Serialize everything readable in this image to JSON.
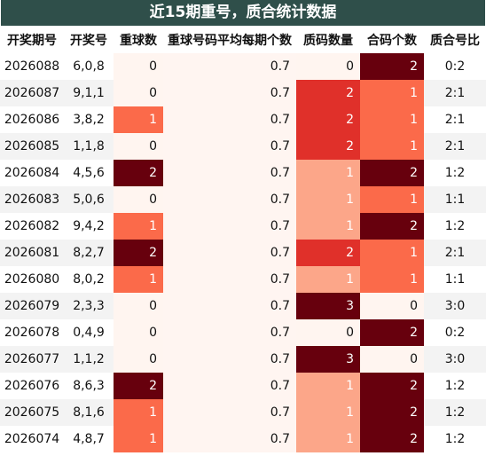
{
  "title": "近15期重号，质合统计数据",
  "chart_data": {
    "type": "table",
    "columns": [
      "开奖期号",
      "开奖号",
      "重球数",
      "重球号码平均每期个数",
      "质码数量",
      "合码个数",
      "质合号比"
    ],
    "rows": [
      [
        "2026088",
        "6,0,8",
        0,
        0.7,
        0,
        2,
        "0:2"
      ],
      [
        "2026087",
        "9,1,1",
        0,
        0.7,
        2,
        1,
        "2:1"
      ],
      [
        "2026086",
        "3,8,2",
        1,
        0.7,
        2,
        1,
        "2:1"
      ],
      [
        "2026085",
        "1,1,8",
        0,
        0.7,
        2,
        1,
        "2:1"
      ],
      [
        "2026084",
        "4,5,6",
        2,
        0.7,
        1,
        2,
        "1:2"
      ],
      [
        "2026083",
        "5,0,6",
        0,
        0.7,
        1,
        1,
        "1:1"
      ],
      [
        "2026082",
        "9,4,2",
        1,
        0.7,
        1,
        2,
        "1:2"
      ],
      [
        "2026081",
        "8,2,7",
        2,
        0.7,
        2,
        1,
        "2:1"
      ],
      [
        "2026080",
        "8,0,2",
        1,
        0.7,
        1,
        1,
        "1:1"
      ],
      [
        "2026079",
        "2,3,3",
        0,
        0.7,
        3,
        0,
        "3:0"
      ],
      [
        "2026078",
        "0,4,9",
        0,
        0.7,
        0,
        2,
        "0:2"
      ],
      [
        "2026077",
        "1,1,2",
        0,
        0.7,
        3,
        0,
        "3:0"
      ],
      [
        "2026076",
        "8,6,3",
        2,
        0.7,
        1,
        2,
        "1:2"
      ],
      [
        "2026075",
        "8,1,6",
        1,
        0.7,
        1,
        2,
        "1:2"
      ],
      [
        "2026074",
        "4,8,7",
        1,
        0.7,
        1,
        2,
        "1:2"
      ]
    ],
    "heat_colors": {
      "repeat": {
        "0": "#fff5f0",
        "1": "#fb6a4a",
        "2": "#67000d"
      },
      "prime": {
        "0": "#fff5f0",
        "1": "#fca689",
        "2": "#e0302a",
        "3": "#67000d"
      },
      "composite": {
        "0": "#fff5f0",
        "1": "#fb6a4a",
        "2": "#67000d"
      }
    }
  }
}
